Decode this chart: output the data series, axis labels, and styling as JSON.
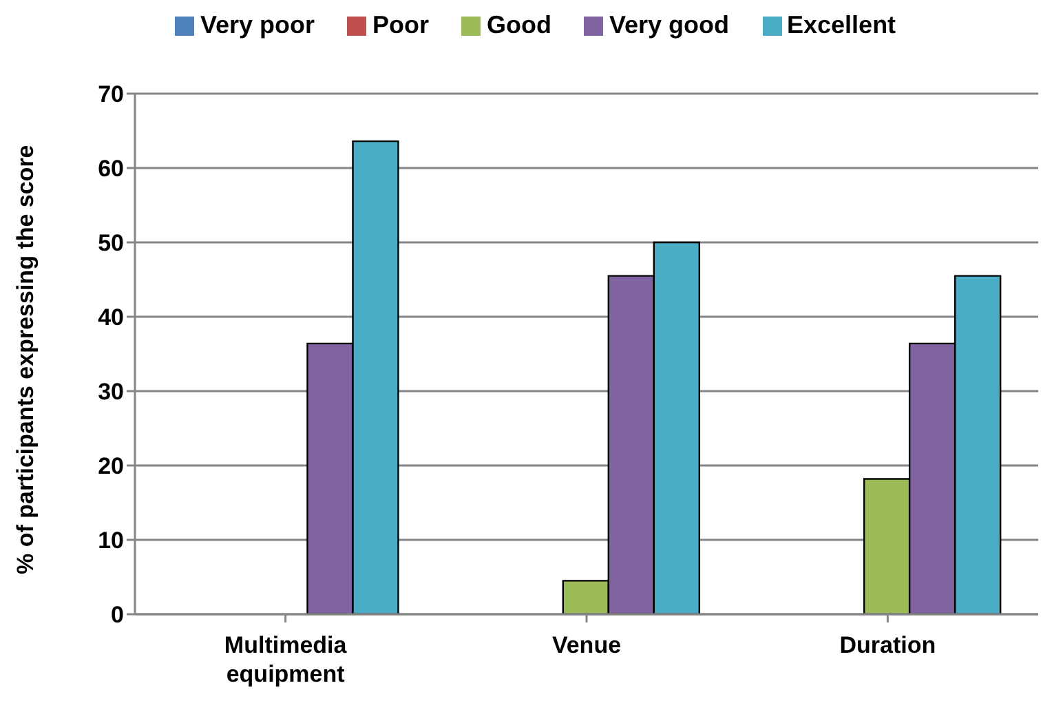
{
  "chart_data": {
    "type": "bar",
    "ylabel": "% of participants expressing the score",
    "categories": [
      "Multimedia equipment",
      "Venue",
      "Duration"
    ],
    "series": [
      {
        "name": "Very poor",
        "color": "#4f81bd",
        "values": [
          0,
          0,
          0
        ]
      },
      {
        "name": "Poor",
        "color": "#c0504d",
        "values": [
          0,
          0,
          0
        ]
      },
      {
        "name": "Good",
        "color": "#9bbb59",
        "values": [
          0,
          4.5,
          18.2
        ]
      },
      {
        "name": "Very good",
        "color": "#8064a2",
        "values": [
          36.4,
          45.5,
          36.4
        ]
      },
      {
        "name": "Excellent",
        "color": "#4bacc6",
        "values": [
          63.6,
          50,
          45.5
        ]
      }
    ],
    "ylim": [
      0,
      70
    ],
    "yticks": [
      0,
      10,
      20,
      30,
      40,
      50,
      60,
      70
    ],
    "grid": "y",
    "legend": "top"
  }
}
